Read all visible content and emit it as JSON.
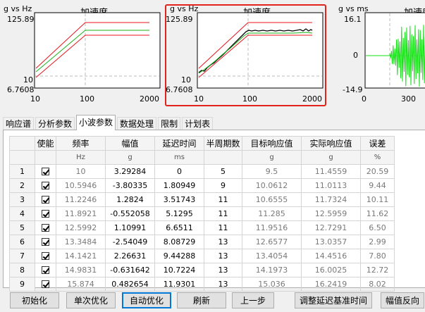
{
  "charts": [
    {
      "y_unit": "g",
      "x_unit": "Hz",
      "title": "加速度",
      "y_max": "125.89",
      "y_mid": "10",
      "y_min": "6.7608",
      "x_ticks": [
        "10",
        "100",
        "2000"
      ]
    },
    {
      "y_unit": "g",
      "x_unit": "Hz",
      "title": "加速度",
      "y_max": "125.89",
      "y_mid": "10",
      "y_min": "6.7608",
      "x_ticks": [
        "10",
        "100",
        "2000"
      ]
    },
    {
      "y_unit": "g",
      "x_unit": "ms",
      "title": "加速度",
      "y_max": "16.1",
      "y_mid": "0",
      "y_min": "-14.9",
      "x_ticks": [
        "0",
        "300"
      ]
    }
  ],
  "colors": {
    "upper_limit": "#e8141e",
    "lower_limit": "#e8141e",
    "reference": "#19b319",
    "response": "#000000",
    "waveform": "#12e012",
    "selection": "#e0231b"
  },
  "tabs": [
    "响应谱",
    "分析参数",
    "小波参数",
    "数据处理",
    "限制",
    "计划表"
  ],
  "active_tab": 2,
  "table": {
    "headers": [
      "使能",
      "频率",
      "幅值",
      "延迟时间",
      "半周期数",
      "目标响应值",
      "实际响应值",
      "误差"
    ],
    "units": [
      "",
      "Hz",
      "g",
      "ms",
      "",
      "g",
      "g",
      "%"
    ],
    "rows": [
      {
        "index": "1",
        "enabled": true,
        "freq": "10",
        "amp": "3.29284",
        "delay": "0",
        "half": "5",
        "target": "9.5",
        "actual": "11.4559",
        "error": "20.59"
      },
      {
        "index": "2",
        "enabled": true,
        "freq": "10.5946",
        "amp": "-3.80335",
        "delay": "1.80949",
        "half": "9",
        "target": "10.0612",
        "actual": "11.0113",
        "error": "9.44"
      },
      {
        "index": "3",
        "enabled": true,
        "freq": "11.2246",
        "amp": "1.2824",
        "delay": "3.51743",
        "half": "11",
        "target": "10.6555",
        "actual": "11.7324",
        "error": "10.11"
      },
      {
        "index": "4",
        "enabled": true,
        "freq": "11.8921",
        "amp": "-0.552058",
        "delay": "5.1295",
        "half": "11",
        "target": "11.285",
        "actual": "12.5959",
        "error": "11.62"
      },
      {
        "index": "5",
        "enabled": true,
        "freq": "12.5992",
        "amp": "1.10991",
        "delay": "6.6511",
        "half": "11",
        "target": "11.9516",
        "actual": "12.7291",
        "error": "6.50"
      },
      {
        "index": "6",
        "enabled": true,
        "freq": "13.3484",
        "amp": "-2.54049",
        "delay": "8.08729",
        "half": "13",
        "target": "12.6577",
        "actual": "13.0357",
        "error": "2.99"
      },
      {
        "index": "7",
        "enabled": true,
        "freq": "14.1421",
        "amp": "2.26631",
        "delay": "9.44288",
        "half": "13",
        "target": "13.4054",
        "actual": "14.4516",
        "error": "7.80"
      },
      {
        "index": "8",
        "enabled": true,
        "freq": "14.9831",
        "amp": "-0.631642",
        "delay": "10.7224",
        "half": "13",
        "target": "14.1973",
        "actual": "16.0025",
        "error": "12.72"
      },
      {
        "index": "9",
        "enabled": true,
        "freq": "15.874",
        "amp": "0.482654",
        "delay": "11.9301",
        "half": "13",
        "target": "15.036",
        "actual": "16.2419",
        "error": "8.02"
      }
    ]
  },
  "buttons": [
    "初始化",
    "单次优化",
    "自动优化",
    "刷新",
    "上一步",
    "调整延迟基准时间",
    "幅值反向"
  ]
}
